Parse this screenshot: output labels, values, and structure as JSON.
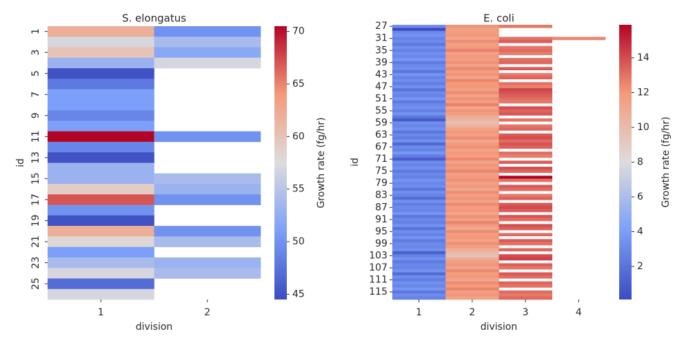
{
  "chart_data": [
    {
      "type": "heatmap",
      "title": "S. elongatus",
      "xlabel": "division",
      "ylabel": "id",
      "colorbar_label": "Growth rate (fg/hr)",
      "cmap": "coolwarm",
      "x_categories": [
        "1",
        "2"
      ],
      "y_categories": [
        1,
        null,
        3,
        null,
        5,
        null,
        7,
        null,
        9,
        null,
        11,
        null,
        13,
        null,
        15,
        null,
        17,
        null,
        19,
        null,
        21,
        null,
        23,
        null,
        25,
        null
      ],
      "values": [
        [
          62,
          50
        ],
        [
          57,
          54
        ],
        [
          60,
          52
        ],
        [
          53,
          57
        ],
        [
          45,
          null
        ],
        [
          48,
          null
        ],
        [
          51,
          null
        ],
        [
          51,
          null
        ],
        [
          49,
          null
        ],
        [
          51,
          null
        ],
        [
          70.5,
          50
        ],
        [
          49,
          null
        ],
        [
          45,
          null
        ],
        [
          53,
          null
        ],
        [
          53,
          54
        ],
        [
          59,
          53
        ],
        [
          67,
          50
        ],
        [
          50,
          null
        ],
        [
          45,
          null
        ],
        [
          62,
          50
        ],
        [
          58,
          54
        ],
        [
          51,
          null
        ],
        [
          54,
          53
        ],
        [
          57,
          54
        ],
        [
          47,
          null
        ],
        [
          57,
          null
        ]
      ],
      "clim": [
        44.5,
        70.5
      ],
      "cticks": [
        45,
        50,
        55,
        60,
        65,
        70
      ]
    },
    {
      "type": "heatmap",
      "title": "E. coli",
      "xlabel": "division",
      "ylabel": "id",
      "colorbar_label": "Growth rate (fg/hr)",
      "cmap": "coolwarm",
      "x_categories": [
        "1",
        "2",
        "3",
        "4"
      ],
      "y_categories": [
        27,
        null,
        null,
        null,
        31,
        null,
        null,
        null,
        35,
        null,
        null,
        null,
        39,
        null,
        null,
        null,
        43,
        null,
        null,
        null,
        47,
        null,
        null,
        null,
        51,
        null,
        null,
        null,
        55,
        null,
        null,
        null,
        59,
        null,
        null,
        null,
        63,
        null,
        null,
        null,
        67,
        null,
        null,
        null,
        71,
        null,
        null,
        null,
        75,
        null,
        null,
        null,
        79,
        null,
        null,
        null,
        83,
        null,
        null,
        null,
        87,
        null,
        null,
        null,
        91,
        null,
        null,
        null,
        95,
        null,
        null,
        null,
        99,
        null,
        null,
        null,
        103,
        null,
        null,
        null,
        107,
        null,
        null,
        null,
        111,
        null,
        null,
        null,
        115,
        null,
        null
      ],
      "values": [
        [
          3.2,
          12.1,
          12.8,
          null
        ],
        [
          0.1,
          11.5,
          null,
          null
        ],
        [
          3.0,
          11.8,
          null,
          null
        ],
        [
          3.5,
          12.0,
          null,
          null
        ],
        [
          2.8,
          11.2,
          13.0,
          12.5
        ],
        [
          3.1,
          12.3,
          13.5,
          null
        ],
        [
          2.2,
          11.6,
          null,
          null
        ],
        [
          3.4,
          11.9,
          12.9,
          null
        ],
        [
          2.6,
          12.6,
          13.2,
          null
        ],
        [
          3.3,
          11.4,
          12.7,
          null
        ],
        [
          2.9,
          12.0,
          null,
          null
        ],
        [
          3.6,
          11.7,
          13.1,
          null
        ],
        [
          2.4,
          12.2,
          13.3,
          null
        ],
        [
          3.0,
          11.5,
          null,
          null
        ],
        [
          3.3,
          12.4,
          13.6,
          null
        ],
        [
          2.1,
          11.8,
          null,
          null
        ],
        [
          3.5,
          12.1,
          12.9,
          null
        ],
        [
          2.7,
          11.3,
          13.4,
          null
        ],
        [
          3.2,
          12.5,
          null,
          null
        ],
        [
          2.5,
          11.9,
          13.0,
          null
        ],
        [
          3.4,
          12.0,
          12.6,
          null
        ],
        [
          2.0,
          11.6,
          14.2,
          null
        ],
        [
          3.1,
          12.3,
          13.8,
          null
        ],
        [
          2.8,
          11.4,
          13.5,
          null
        ],
        [
          3.6,
          12.2,
          13.1,
          null
        ],
        [
          2.3,
          11.7,
          12.8,
          null
        ],
        [
          3.0,
          12.6,
          null,
          null
        ],
        [
          3.3,
          11.2,
          13.9,
          null
        ],
        [
          2.6,
          12.1,
          13.4,
          null
        ],
        [
          3.5,
          11.8,
          13.7,
          null
        ],
        [
          2.2,
          10.9,
          null,
          null
        ],
        [
          0.8,
          10.2,
          13.0,
          null
        ],
        [
          3.2,
          9.8,
          null,
          null
        ],
        [
          2.9,
          10.4,
          12.9,
          null
        ],
        [
          3.4,
          11.5,
          13.3,
          null
        ],
        [
          2.1,
          12.0,
          null,
          null
        ],
        [
          3.0,
          11.6,
          13.6,
          null
        ],
        [
          2.5,
          12.3,
          14.0,
          null
        ],
        [
          3.3,
          11.1,
          13.2,
          null
        ],
        [
          1.5,
          11.9,
          13.8,
          null
        ],
        [
          3.1,
          12.2,
          13.4,
          null
        ],
        [
          2.7,
          11.4,
          null,
          null
        ],
        [
          3.6,
          12.0,
          13.1,
          null
        ],
        [
          2.4,
          11.7,
          12.7,
          null
        ],
        [
          1.0,
          12.4,
          null,
          null
        ],
        [
          3.2,
          11.3,
          13.5,
          null
        ],
        [
          2.8,
          12.1,
          null,
          null
        ],
        [
          3.4,
          11.8,
          13.9,
          null
        ],
        [
          2.3,
          12.5,
          13.3,
          null
        ],
        [
          3.0,
          11.6,
          null,
          null
        ],
        [
          2.6,
          11.9,
          15.9,
          null
        ],
        [
          3.5,
          12.2,
          13.0,
          null
        ],
        [
          2.9,
          11.5,
          null,
          null
        ],
        [
          3.2,
          12.0,
          13.6,
          null
        ],
        [
          2.1,
          11.2,
          13.2,
          null
        ],
        [
          3.3,
          12.3,
          null,
          null
        ],
        [
          2.7,
          11.7,
          12.8,
          null
        ],
        [
          1.8,
          12.1,
          13.4,
          null
        ],
        [
          3.4,
          11.4,
          null,
          null
        ],
        [
          2.5,
          12.4,
          13.7,
          null
        ],
        [
          3.1,
          11.8,
          14.1,
          null
        ],
        [
          2.8,
          12.0,
          13.5,
          null
        ],
        [
          3.6,
          11.3,
          null,
          null
        ],
        [
          2.2,
          12.2,
          13.8,
          null
        ],
        [
          3.0,
          11.6,
          13.1,
          null
        ],
        [
          2.6,
          12.5,
          null,
          null
        ],
        [
          3.4,
          11.9,
          13.9,
          null
        ],
        [
          1.9,
          11.1,
          13.4,
          null
        ],
        [
          3.2,
          12.3,
          null,
          null
        ],
        [
          2.7,
          11.7,
          13.2,
          null
        ],
        [
          3.5,
          12.0,
          null,
          null
        ],
        [
          2.4,
          11.5,
          13.6,
          null
        ],
        [
          3.1,
          12.2,
          13.0,
          null
        ],
        [
          2.9,
          11.8,
          null,
          null
        ],
        [
          3.3,
          10.8,
          13.3,
          null
        ],
        [
          1.1,
          10.1,
          null,
          null
        ],
        [
          2.6,
          9.6,
          14.0,
          null
        ],
        [
          3.4,
          10.9,
          14.3,
          null
        ],
        [
          2.3,
          11.6,
          null,
          null
        ],
        [
          3.0,
          12.1,
          13.5,
          null
        ],
        [
          2.8,
          11.4,
          12.9,
          null
        ],
        [
          3.5,
          12.4,
          null,
          null
        ],
        [
          1.6,
          11.7,
          13.7,
          null
        ],
        [
          3.2,
          12.0,
          13.1,
          null
        ],
        [
          2.5,
          11.3,
          null,
          null
        ],
        [
          3.3,
          12.3,
          13.4,
          null
        ],
        [
          2.9,
          11.8,
          13.0,
          null
        ],
        [
          3.6,
          12.5,
          null,
          null
        ],
        [
          2.2,
          11.6,
          13.2,
          null
        ],
        [
          3.1,
          12.0,
          12.8,
          null
        ],
        [
          2.7,
          11.5,
          13.3,
          null
        ]
      ],
      "clim": [
        0.1,
        15.9
      ],
      "cticks": [
        2,
        4,
        6,
        8,
        10,
        12,
        14
      ]
    }
  ]
}
